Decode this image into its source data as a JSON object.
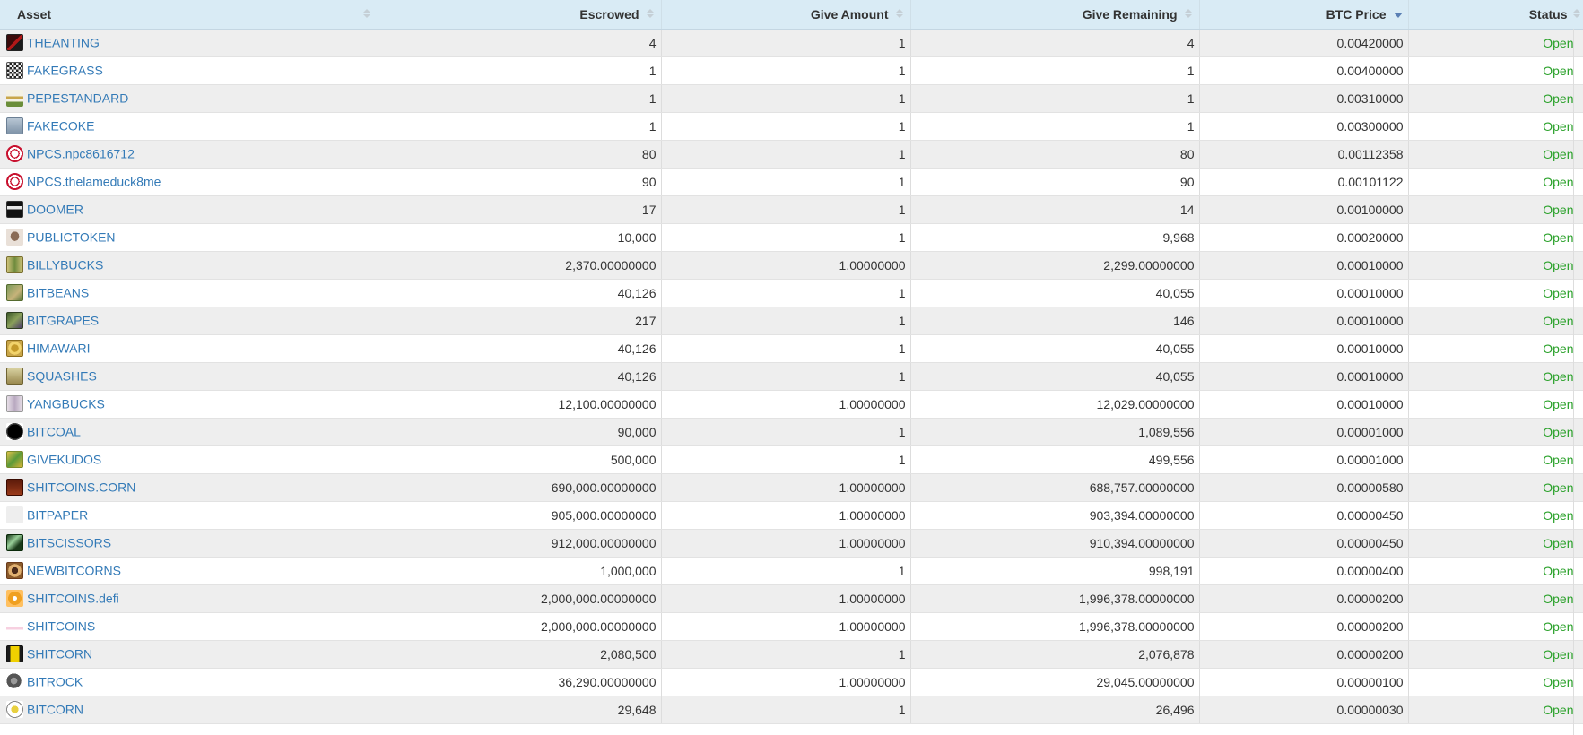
{
  "columns": {
    "asset": "Asset",
    "escrowed": "Escrowed",
    "give_amount": "Give Amount",
    "give_remaining": "Give Remaining",
    "btc_price": "BTC Price",
    "status": "Status"
  },
  "sort": {
    "column": "BTC Price",
    "direction": "descending"
  },
  "rows": [
    {
      "asset": "THEANTING",
      "icon": "theanting-icon",
      "escrowed": "4",
      "give_amount": "1",
      "give_remaining": "4",
      "btc_price": "0.00420000",
      "status": "Open"
    },
    {
      "asset": "FAKEGRASS",
      "icon": "fakegrass-icon",
      "escrowed": "1",
      "give_amount": "1",
      "give_remaining": "1",
      "btc_price": "0.00400000",
      "status": "Open"
    },
    {
      "asset": "PEPESTANDARD",
      "icon": "pepestandard-icon",
      "escrowed": "1",
      "give_amount": "1",
      "give_remaining": "1",
      "btc_price": "0.00310000",
      "status": "Open"
    },
    {
      "asset": "FAKECOKE",
      "icon": "fakecoke-icon",
      "escrowed": "1",
      "give_amount": "1",
      "give_remaining": "1",
      "btc_price": "0.00300000",
      "status": "Open"
    },
    {
      "asset": "NPCS.npc8616712",
      "icon": "npcs-icon",
      "escrowed": "80",
      "give_amount": "1",
      "give_remaining": "80",
      "btc_price": "0.00112358",
      "status": "Open"
    },
    {
      "asset": "NPCS.thelameduck8me",
      "icon": "npcs-icon",
      "escrowed": "90",
      "give_amount": "1",
      "give_remaining": "90",
      "btc_price": "0.00101122",
      "status": "Open"
    },
    {
      "asset": "DOOMER",
      "icon": "doomer-icon",
      "escrowed": "17",
      "give_amount": "1",
      "give_remaining": "14",
      "btc_price": "0.00100000",
      "status": "Open"
    },
    {
      "asset": "PUBLICTOKEN",
      "icon": "publictoken-icon",
      "escrowed": "10,000",
      "give_amount": "1",
      "give_remaining": "9,968",
      "btc_price": "0.00020000",
      "status": "Open"
    },
    {
      "asset": "BILLYBUCKS",
      "icon": "billybucks-icon",
      "escrowed": "2,370.00000000",
      "give_amount": "1.00000000",
      "give_remaining": "2,299.00000000",
      "btc_price": "0.00010000",
      "status": "Open"
    },
    {
      "asset": "BITBEANS",
      "icon": "bitbeans-icon",
      "escrowed": "40,126",
      "give_amount": "1",
      "give_remaining": "40,055",
      "btc_price": "0.00010000",
      "status": "Open"
    },
    {
      "asset": "BITGRAPES",
      "icon": "bitgrapes-icon",
      "escrowed": "217",
      "give_amount": "1",
      "give_remaining": "146",
      "btc_price": "0.00010000",
      "status": "Open"
    },
    {
      "asset": "HIMAWARI",
      "icon": "himawari-icon",
      "escrowed": "40,126",
      "give_amount": "1",
      "give_remaining": "40,055",
      "btc_price": "0.00010000",
      "status": "Open"
    },
    {
      "asset": "SQUASHES",
      "icon": "squashes-icon",
      "escrowed": "40,126",
      "give_amount": "1",
      "give_remaining": "40,055",
      "btc_price": "0.00010000",
      "status": "Open"
    },
    {
      "asset": "YANGBUCKS",
      "icon": "yangbucks-icon",
      "escrowed": "12,100.00000000",
      "give_amount": "1.00000000",
      "give_remaining": "12,029.00000000",
      "btc_price": "0.00010000",
      "status": "Open"
    },
    {
      "asset": "BITCOAL",
      "icon": "bitcoal-icon",
      "escrowed": "90,000",
      "give_amount": "1",
      "give_remaining": "1,089,556",
      "btc_price": "0.00001000",
      "status": "Open"
    },
    {
      "asset": "GIVEKUDOS",
      "icon": "givekudos-icon",
      "escrowed": "500,000",
      "give_amount": "1",
      "give_remaining": "499,556",
      "btc_price": "0.00001000",
      "status": "Open"
    },
    {
      "asset": "SHITCOINS.CORN",
      "icon": "shitcoins-corn-icon",
      "escrowed": "690,000.00000000",
      "give_amount": "1.00000000",
      "give_remaining": "688,757.00000000",
      "btc_price": "0.00000580",
      "status": "Open"
    },
    {
      "asset": "BITPAPER",
      "icon": "bitpaper-icon",
      "escrowed": "905,000.00000000",
      "give_amount": "1.00000000",
      "give_remaining": "903,394.00000000",
      "btc_price": "0.00000450",
      "status": "Open"
    },
    {
      "asset": "BITSCISSORS",
      "icon": "bitscissors-icon",
      "escrowed": "912,000.00000000",
      "give_amount": "1.00000000",
      "give_remaining": "910,394.00000000",
      "btc_price": "0.00000450",
      "status": "Open"
    },
    {
      "asset": "NEWBITCORNS",
      "icon": "newbitcorns-icon",
      "escrowed": "1,000,000",
      "give_amount": "1",
      "give_remaining": "998,191",
      "btc_price": "0.00000400",
      "status": "Open"
    },
    {
      "asset": "SHITCOINS.defi",
      "icon": "shitcoins-defi-icon",
      "escrowed": "2,000,000.00000000",
      "give_amount": "1.00000000",
      "give_remaining": "1,996,378.00000000",
      "btc_price": "0.00000200",
      "status": "Open"
    },
    {
      "asset": "SHITCOINS",
      "icon": "shitcoins-icon",
      "escrowed": "2,000,000.00000000",
      "give_amount": "1.00000000",
      "give_remaining": "1,996,378.00000000",
      "btc_price": "0.00000200",
      "status": "Open"
    },
    {
      "asset": "SHITCORN",
      "icon": "shitcorn-icon",
      "escrowed": "2,080,500",
      "give_amount": "1",
      "give_remaining": "2,076,878",
      "btc_price": "0.00000200",
      "status": "Open"
    },
    {
      "asset": "BITROCK",
      "icon": "bitrock-icon",
      "escrowed": "36,290.00000000",
      "give_amount": "1.00000000",
      "give_remaining": "29,045.00000000",
      "btc_price": "0.00000100",
      "status": "Open"
    },
    {
      "asset": "BITCORN",
      "icon": "bitcorn-icon",
      "escrowed": "29,648",
      "give_amount": "1",
      "give_remaining": "26,496",
      "btc_price": "0.00000030",
      "status": "Open"
    }
  ]
}
